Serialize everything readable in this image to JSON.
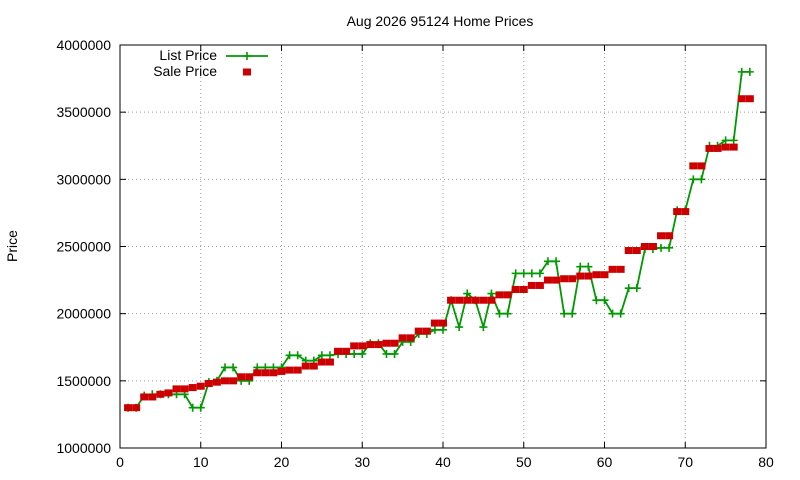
{
  "chart_data": {
    "type": "line",
    "title": "Aug 2026 95124 Home Prices",
    "xlabel": "",
    "ylabel": "Price",
    "xlim": [
      0,
      80
    ],
    "ylim": [
      1000000,
      4000000
    ],
    "xticks": [
      0,
      10,
      20,
      30,
      40,
      50,
      60,
      70,
      80
    ],
    "yticks": [
      1000000,
      1500000,
      2000000,
      2500000,
      3000000,
      3500000,
      4000000
    ],
    "grid": true,
    "legend_position": "top-left",
    "series": [
      {
        "name": "List Price",
        "style": "lines-points",
        "color": "#009900",
        "marker": "plus",
        "points": [
          [
            1,
            1300000
          ],
          [
            2,
            1300000
          ],
          [
            3,
            1390000
          ],
          [
            4,
            1400000
          ],
          [
            5,
            1400000
          ],
          [
            6,
            1400000
          ],
          [
            7,
            1400000
          ],
          [
            8,
            1400000
          ],
          [
            9,
            1300000
          ],
          [
            10,
            1300000
          ],
          [
            11,
            1490000
          ],
          [
            12,
            1500000
          ],
          [
            13,
            1600000
          ],
          [
            14,
            1600000
          ],
          [
            15,
            1500000
          ],
          [
            16,
            1500000
          ],
          [
            17,
            1600000
          ],
          [
            18,
            1600000
          ],
          [
            19,
            1600000
          ],
          [
            20,
            1600000
          ],
          [
            21,
            1690000
          ],
          [
            22,
            1690000
          ],
          [
            23,
            1650000
          ],
          [
            24,
            1650000
          ],
          [
            25,
            1690000
          ],
          [
            26,
            1690000
          ],
          [
            27,
            1700000
          ],
          [
            28,
            1700000
          ],
          [
            29,
            1700000
          ],
          [
            30,
            1700000
          ],
          [
            31,
            1780000
          ],
          [
            32,
            1780000
          ],
          [
            33,
            1700000
          ],
          [
            34,
            1700000
          ],
          [
            35,
            1790000
          ],
          [
            36,
            1790000
          ],
          [
            37,
            1850000
          ],
          [
            38,
            1850000
          ],
          [
            39,
            1880000
          ],
          [
            40,
            1880000
          ],
          [
            41,
            2100000
          ],
          [
            42,
            1900000
          ],
          [
            43,
            2150000
          ],
          [
            44,
            2100000
          ],
          [
            45,
            1900000
          ],
          [
            46,
            2150000
          ],
          [
            47,
            2000000
          ],
          [
            48,
            2000000
          ],
          [
            49,
            2300000
          ],
          [
            50,
            2300000
          ],
          [
            51,
            2300000
          ],
          [
            52,
            2300000
          ],
          [
            53,
            2390000
          ],
          [
            54,
            2390000
          ],
          [
            55,
            2000000
          ],
          [
            56,
            2000000
          ],
          [
            57,
            2350000
          ],
          [
            58,
            2350000
          ],
          [
            59,
            2100000
          ],
          [
            60,
            2100000
          ],
          [
            61,
            2000000
          ],
          [
            62,
            2000000
          ],
          [
            63,
            2190000
          ],
          [
            64,
            2190000
          ],
          [
            65,
            2480000
          ],
          [
            66,
            2480000
          ],
          [
            67,
            2490000
          ],
          [
            68,
            2490000
          ],
          [
            69,
            2770000
          ],
          [
            70,
            2770000
          ],
          [
            71,
            3000000
          ],
          [
            72,
            3000000
          ],
          [
            73,
            3250000
          ],
          [
            74,
            3250000
          ],
          [
            75,
            3290000
          ],
          [
            76,
            3290000
          ],
          [
            77,
            3800000
          ],
          [
            78,
            3800000
          ]
        ]
      },
      {
        "name": "Sale Price",
        "style": "points",
        "color": "#cc0000",
        "marker": "filled-square",
        "points": [
          [
            1,
            1300000
          ],
          [
            2,
            1300000
          ],
          [
            3,
            1380000
          ],
          [
            4,
            1380000
          ],
          [
            5,
            1400000
          ],
          [
            6,
            1410000
          ],
          [
            7,
            1440000
          ],
          [
            8,
            1440000
          ],
          [
            9,
            1450000
          ],
          [
            10,
            1460000
          ],
          [
            11,
            1480000
          ],
          [
            12,
            1490000
          ],
          [
            13,
            1500000
          ],
          [
            14,
            1500000
          ],
          [
            15,
            1530000
          ],
          [
            16,
            1530000
          ],
          [
            17,
            1560000
          ],
          [
            18,
            1560000
          ],
          [
            19,
            1560000
          ],
          [
            20,
            1570000
          ],
          [
            21,
            1580000
          ],
          [
            22,
            1580000
          ],
          [
            23,
            1610000
          ],
          [
            24,
            1610000
          ],
          [
            25,
            1640000
          ],
          [
            26,
            1640000
          ],
          [
            27,
            1720000
          ],
          [
            28,
            1720000
          ],
          [
            29,
            1760000
          ],
          [
            30,
            1760000
          ],
          [
            31,
            1770000
          ],
          [
            32,
            1770000
          ],
          [
            33,
            1780000
          ],
          [
            34,
            1780000
          ],
          [
            35,
            1820000
          ],
          [
            36,
            1820000
          ],
          [
            37,
            1870000
          ],
          [
            38,
            1870000
          ],
          [
            39,
            1930000
          ],
          [
            40,
            1930000
          ],
          [
            41,
            2100000
          ],
          [
            42,
            2100000
          ],
          [
            43,
            2100000
          ],
          [
            44,
            2100000
          ],
          [
            45,
            2100000
          ],
          [
            46,
            2100000
          ],
          [
            47,
            2140000
          ],
          [
            48,
            2140000
          ],
          [
            49,
            2180000
          ],
          [
            50,
            2180000
          ],
          [
            51,
            2210000
          ],
          [
            52,
            2210000
          ],
          [
            53,
            2250000
          ],
          [
            54,
            2250000
          ],
          [
            55,
            2260000
          ],
          [
            56,
            2260000
          ],
          [
            57,
            2280000
          ],
          [
            58,
            2280000
          ],
          [
            59,
            2290000
          ],
          [
            60,
            2290000
          ],
          [
            61,
            2330000
          ],
          [
            62,
            2330000
          ],
          [
            63,
            2470000
          ],
          [
            64,
            2470000
          ],
          [
            65,
            2500000
          ],
          [
            66,
            2500000
          ],
          [
            67,
            2580000
          ],
          [
            68,
            2580000
          ],
          [
            69,
            2760000
          ],
          [
            70,
            2760000
          ],
          [
            71,
            3100000
          ],
          [
            72,
            3100000
          ],
          [
            73,
            3230000
          ],
          [
            74,
            3230000
          ],
          [
            75,
            3240000
          ],
          [
            76,
            3240000
          ],
          [
            77,
            3600000
          ],
          [
            78,
            3600000
          ]
        ]
      }
    ]
  }
}
